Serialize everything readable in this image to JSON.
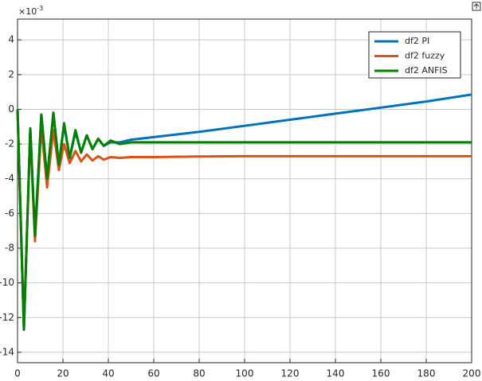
{
  "chart_data": {
    "type": "line",
    "y_multiplier": {
      "base": "×10",
      "exponent": "-3"
    },
    "x": [
      0,
      2.8,
      5.6,
      7.7,
      10.5,
      13,
      15.8,
      18.2,
      20.5,
      23,
      25.5,
      28,
      30.5,
      33,
      35.5,
      38,
      41,
      45,
      50,
      60,
      80,
      100,
      120,
      140,
      160,
      180,
      200
    ],
    "series": [
      {
        "name": "df2 PI",
        "color": "#0072BD",
        "values": [
          0,
          -12.7,
          -1.1,
          -7.3,
          -0.3,
          -4.0,
          -0.2,
          -3.2,
          -0.9,
          -2.8,
          -1.3,
          -2.5,
          -1.5,
          -2.3,
          -1.7,
          -2.1,
          -1.9,
          -1.9,
          -1.75,
          -1.6,
          -1.3,
          -0.95,
          -0.6,
          -0.25,
          0.1,
          0.45,
          0.85
        ]
      },
      {
        "name": "df2 fuzzy",
        "color": "#D95319",
        "values": [
          0,
          -12.6,
          -1.3,
          -7.6,
          -1.0,
          -4.5,
          -1.2,
          -3.5,
          -2.0,
          -3.1,
          -2.4,
          -3.0,
          -2.6,
          -2.95,
          -2.7,
          -2.9,
          -2.75,
          -2.8,
          -2.75,
          -2.75,
          -2.72,
          -2.7,
          -2.7,
          -2.7,
          -2.7,
          -2.7,
          -2.7
        ]
      },
      {
        "name": "df2 ANFIS",
        "color": "#008000",
        "values": [
          0,
          -12.7,
          -1.1,
          -7.3,
          -0.3,
          -4.0,
          -0.2,
          -3.2,
          -0.8,
          -2.8,
          -1.2,
          -2.5,
          -1.5,
          -2.3,
          -1.7,
          -2.1,
          -1.8,
          -2.0,
          -1.9,
          -1.9,
          -1.9,
          -1.9,
          -1.9,
          -1.9,
          -1.9,
          -1.9,
          -1.9
        ]
      }
    ],
    "xlim": [
      0,
      200
    ],
    "xticks": [
      0,
      20,
      40,
      60,
      80,
      100,
      120,
      140,
      160,
      180,
      200
    ],
    "ylim": [
      -14.6,
      5.2
    ],
    "yticks": [
      -14,
      -12,
      -10,
      -8,
      -6,
      -4,
      -2,
      0,
      2,
      4
    ],
    "grid": true,
    "legend": "upper right"
  }
}
